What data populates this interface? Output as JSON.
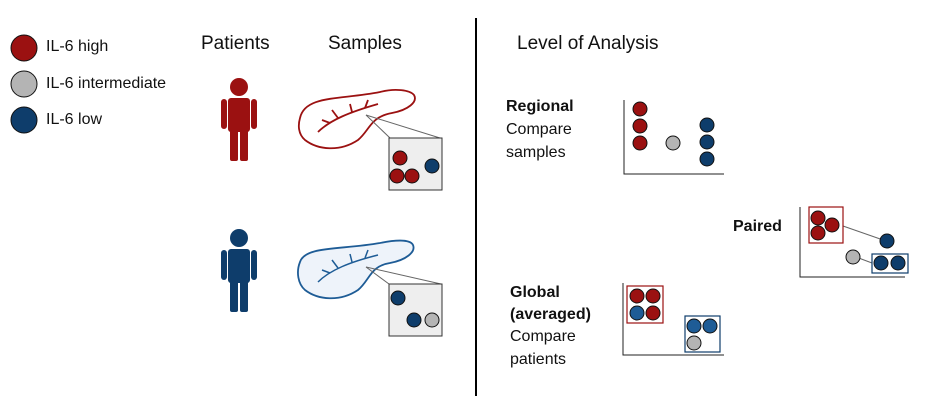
{
  "colors": {
    "high": "#9b1111",
    "intermediate": "#b4b4b4",
    "low": "#0e3d6b",
    "low_light": "#1e5c96"
  },
  "legend": [
    {
      "label": "IL-6 high",
      "level": "high"
    },
    {
      "label": "IL-6 intermediate",
      "level": "intermediate"
    },
    {
      "label": "IL-6 low",
      "level": "low"
    }
  ],
  "headers": {
    "patients": "Patients",
    "samples": "Samples",
    "level_of_analysis": "Level of Analysis"
  },
  "analyses": {
    "regional": {
      "title": "Regional",
      "line1": "Compare",
      "line2": "samples"
    },
    "paired": {
      "title": "Paired"
    },
    "global": {
      "title": "Global",
      "title2": "(averaged)",
      "line1": "Compare",
      "line2": "patients"
    }
  },
  "patients": [
    {
      "name": "patient-high",
      "level": "high",
      "samples": [
        "high",
        "high",
        "high",
        "low"
      ]
    },
    {
      "name": "patient-low",
      "level": "low",
      "samples": [
        "low",
        "low",
        "intermediate"
      ]
    }
  ]
}
